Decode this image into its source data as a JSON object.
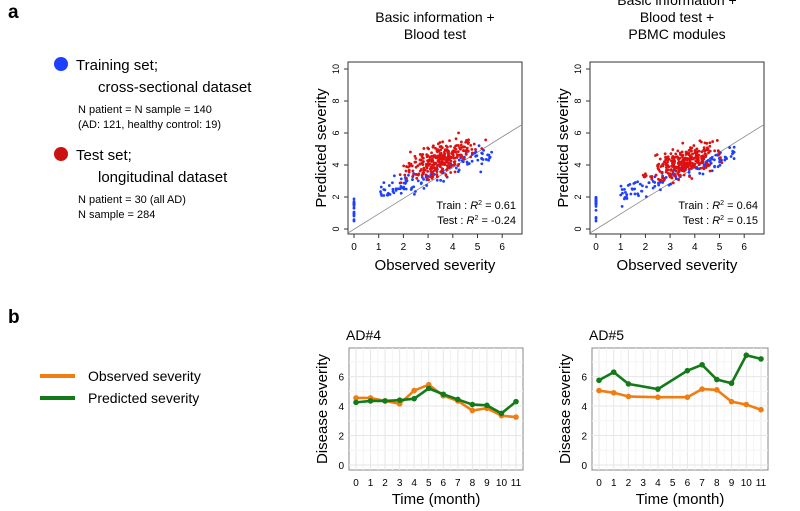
{
  "panels": {
    "a": "a",
    "b": "b"
  },
  "legend_a": {
    "training": {
      "label1": "Training set;",
      "label2": "cross-sectional dataset",
      "n1": "N patient = N sample = 140",
      "n2": "(AD: 121, healthy control: 19)",
      "color": "#1f3fff"
    },
    "test": {
      "label1": "Test set;",
      "label2": "longitudinal dataset",
      "n1": "N patient = 30 (all AD)",
      "n2": "N sample = 284",
      "color": "#cc1111"
    }
  },
  "legend_b": {
    "observed": {
      "label": "Observed severity",
      "color": "#f07d12"
    },
    "predicted": {
      "label": "Predicted severity",
      "color": "#137a1a"
    }
  },
  "chart_data": [
    {
      "type": "scatter",
      "title": [
        "Basic information +",
        "Blood test"
      ],
      "xlabel": "Observed severity",
      "ylabel": "Predicted severity",
      "xlim": [
        0,
        6
      ],
      "ylim": [
        0,
        10
      ],
      "xticks": [
        "0",
        "1",
        "2",
        "3",
        "4",
        "5",
        "6"
      ],
      "yticks": [
        "0",
        "2",
        "4",
        "6",
        "8",
        "10"
      ],
      "train_label": "Train : ",
      "train_r2": "= 0.61",
      "test_label": "Test : ",
      "test_r2": "= -0.24",
      "r2": "R",
      "sup": "2",
      "seed": 7
    },
    {
      "type": "scatter",
      "title": [
        "Basic information +",
        "Blood test +",
        "PBMC modules"
      ],
      "xlabel": "Observed severity",
      "ylabel": "Predicted severity",
      "xlim": [
        0,
        6
      ],
      "ylim": [
        0,
        10
      ],
      "xticks": [
        "0",
        "1",
        "2",
        "3",
        "4",
        "5",
        "6"
      ],
      "yticks": [
        "0",
        "2",
        "4",
        "6",
        "8",
        "10"
      ],
      "train_label": "Train : ",
      "train_r2": "= 0.64",
      "test_label": "Test : ",
      "test_r2": "= 0.15",
      "r2": "R",
      "sup": "2",
      "seed": 13
    },
    {
      "type": "line",
      "title": "AD#4",
      "xlabel": "Time (month)",
      "ylabel": "Disease severity",
      "ylim": [
        0,
        7.6
      ],
      "yticks": [
        "0",
        "2",
        "4",
        "6"
      ],
      "xticks": [
        "0",
        "1",
        "2",
        "3",
        "4",
        "5",
        "6",
        "7",
        "8",
        "9",
        "10",
        "11"
      ],
      "x": [
        0,
        1,
        2,
        3,
        4,
        5,
        6,
        7,
        8,
        9,
        10,
        11
      ],
      "series": [
        {
          "name": "Observed severity",
          "values": [
            4.55,
            4.55,
            4.35,
            4.15,
            5.05,
            5.45,
            4.7,
            4.35,
            3.7,
            3.85,
            3.35,
            3.25
          ]
        },
        {
          "name": "Predicted severity",
          "values": [
            4.25,
            4.35,
            4.35,
            4.4,
            4.5,
            5.2,
            4.8,
            4.45,
            4.1,
            4.05,
            3.5,
            4.3
          ]
        }
      ]
    },
    {
      "type": "line",
      "title": "AD#5",
      "xlabel": "Time (month)",
      "ylabel": "Disease severity",
      "ylim": [
        0,
        7.6
      ],
      "yticks": [
        "0",
        "2",
        "4",
        "6"
      ],
      "xticks": [
        "0",
        "1",
        "2",
        "3",
        "4",
        "5",
        "6",
        "7",
        "8",
        "9",
        "10",
        "11"
      ],
      "x": [
        0,
        1,
        2,
        4,
        6,
        7,
        8,
        9,
        10,
        11
      ],
      "series": [
        {
          "name": "Observed severity",
          "values": [
            5.05,
            4.9,
            4.65,
            4.6,
            4.6,
            5.15,
            5.1,
            4.3,
            4.1,
            3.75
          ]
        },
        {
          "name": "Predicted severity",
          "values": [
            5.75,
            6.3,
            5.5,
            5.15,
            6.4,
            6.8,
            5.8,
            5.55,
            7.45,
            7.2
          ]
        }
      ]
    }
  ]
}
